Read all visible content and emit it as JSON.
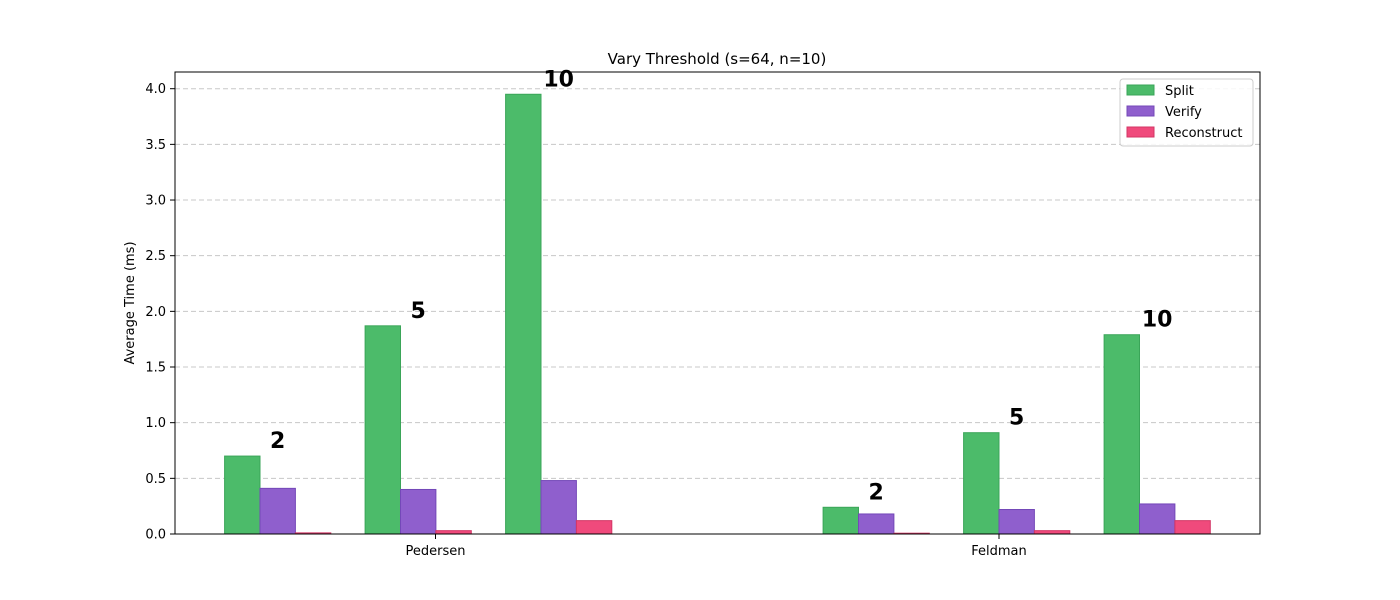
{
  "chart_data": {
    "type": "bar",
    "title": "Vary Threshold (s=64, n=10)",
    "xlabel": "",
    "ylabel": "Average Time (ms)",
    "ylim": [
      0,
      4.15
    ],
    "yticks": [
      "0.0",
      "0.5",
      "1.0",
      "1.5",
      "2.0",
      "2.5",
      "3.0",
      "3.5",
      "4.0"
    ],
    "grid": true,
    "legend_position": "top-right",
    "categories": [
      "Pedersen",
      "Feldman"
    ],
    "thresholds": [
      "2",
      "5",
      "10"
    ],
    "series": [
      {
        "name": "Split",
        "color": "#4cbb6a",
        "edge": "#3aa558",
        "values": {
          "Pedersen": [
            0.7,
            1.87,
            3.95
          ],
          "Feldman": [
            0.24,
            0.91,
            1.79
          ]
        }
      },
      {
        "name": "Verify",
        "color": "#8f5fcd",
        "edge": "#7448b8",
        "values": {
          "Pedersen": [
            0.41,
            0.4,
            0.48
          ],
          "Feldman": [
            0.18,
            0.22,
            0.27
          ]
        }
      },
      {
        "name": "Reconstruct",
        "color": "#f04a7c",
        "edge": "#d33565",
        "values": {
          "Pedersen": [
            0.01,
            0.03,
            0.12
          ],
          "Feldman": [
            0.003,
            0.03,
            0.12
          ]
        }
      }
    ]
  }
}
